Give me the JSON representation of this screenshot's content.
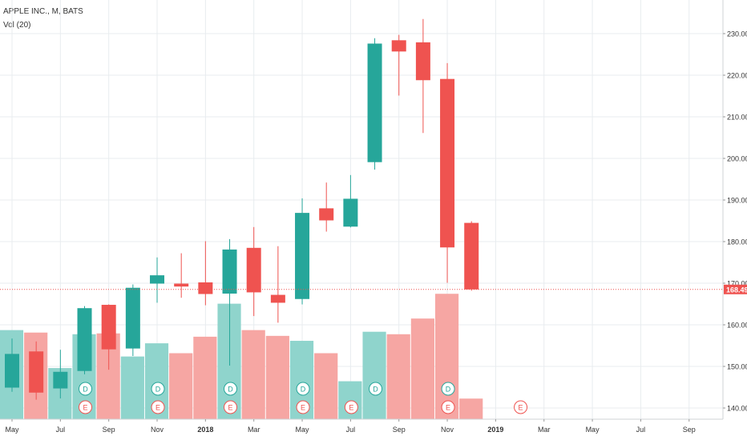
{
  "legend": {
    "symbol_line": "APPLE INC., M, BATS",
    "volume_line": "Vol (20)"
  },
  "colors": {
    "up": "#26a69a",
    "down": "#ef5350",
    "up_volume": "#8fd4cc",
    "down_volume": "#f6a6a3",
    "last_price_line": "#ef5350",
    "grid": "#e8ecef"
  },
  "chart_data": {
    "type": "candlestick",
    "interval": "monthly",
    "ylim": [
      137,
      237
    ],
    "y_ticks": [
      "140.00",
      "150.00",
      "160.00",
      "170.00",
      "180.00",
      "190.00",
      "200.00",
      "210.00",
      "220.00",
      "230.00"
    ],
    "x_ticks": [
      "May",
      "Jul",
      "Sep",
      "Nov",
      "2018",
      "Mar",
      "May",
      "Jul",
      "Sep",
      "Nov",
      "2019",
      "Mar",
      "May",
      "Jul",
      "Sep"
    ],
    "last_price_label": "168.49",
    "candles": [
      {
        "open": 144.9,
        "high": 156.7,
        "low": 143.9,
        "close": 153.0,
        "volume": 540
      },
      {
        "open": 153.6,
        "high": 156.0,
        "low": 142.0,
        "close": 143.7,
        "volume": 525
      },
      {
        "open": 144.7,
        "high": 154.0,
        "low": 142.3,
        "close": 148.7,
        "volume": 310
      },
      {
        "open": 148.9,
        "high": 164.5,
        "low": 148.1,
        "close": 164.0,
        "volume": 515
      },
      {
        "open": 164.8,
        "high": 164.9,
        "low": 149.2,
        "close": 154.1,
        "volume": 520
      },
      {
        "open": 154.3,
        "high": 169.7,
        "low": 152.5,
        "close": 168.9,
        "volume": 380
      },
      {
        "open": 169.9,
        "high": 176.2,
        "low": 165.3,
        "close": 171.9,
        "volume": 460
      },
      {
        "open": 169.9,
        "high": 177.2,
        "low": 166.5,
        "close": 169.2,
        "volume": 400
      },
      {
        "open": 170.2,
        "high": 180.1,
        "low": 164.7,
        "close": 167.4,
        "volume": 500
      },
      {
        "open": 167.5,
        "high": 180.6,
        "low": 150.2,
        "close": 178.1,
        "volume": 700
      },
      {
        "open": 178.5,
        "high": 183.5,
        "low": 162.1,
        "close": 167.8,
        "volume": 540
      },
      {
        "open": 167.2,
        "high": 178.9,
        "low": 160.5,
        "close": 165.3,
        "volume": 505
      },
      {
        "open": 166.2,
        "high": 190.4,
        "low": 164.9,
        "close": 186.9,
        "volume": 475
      },
      {
        "open": 188.0,
        "high": 194.2,
        "low": 182.4,
        "close": 185.1,
        "volume": 400
      },
      {
        "open": 183.6,
        "high": 196.0,
        "low": 183.4,
        "close": 190.3,
        "volume": 230
      },
      {
        "open": 199.1,
        "high": 228.9,
        "low": 197.3,
        "close": 227.6,
        "volume": 530
      },
      {
        "open": 228.4,
        "high": 229.7,
        "low": 215.1,
        "close": 225.7,
        "volume": 515
      },
      {
        "open": 227.9,
        "high": 233.5,
        "low": 206.1,
        "close": 218.8,
        "volume": 610
      },
      {
        "open": 219.1,
        "high": 222.9,
        "low": 170.1,
        "close": 178.6,
        "volume": 760
      },
      {
        "open": 184.5,
        "high": 184.9,
        "low": 168.2,
        "close": 168.5,
        "volume": 125
      }
    ],
    "dividend_markers": [
      3,
      6,
      9,
      12,
      15,
      18
    ],
    "dividend_label": "D",
    "earnings_markers": [
      3,
      6,
      9,
      12,
      14,
      18,
      21
    ],
    "earnings_label": "E"
  }
}
